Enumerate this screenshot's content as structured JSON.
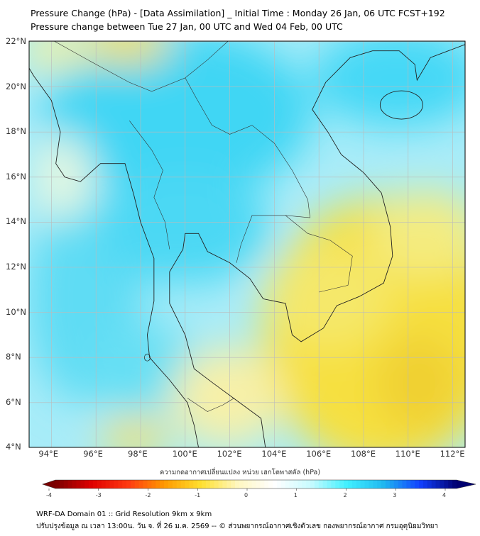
{
  "title": {
    "line1": "Pressure Change (hPa) - [Data Assimilation] _ Initial Time : Monday 26 Jan, 06 UTC FCST+192",
    "line2": "Pressure change between Tue 27 Jan, 00 UTC and Wed 04 Feb, 00 UTC"
  },
  "map": {
    "lon_labels": [
      "94°E",
      "96°E",
      "98°E",
      "100°E",
      "102°E",
      "104°E",
      "106°E",
      "108°E",
      "110°E",
      "112°E"
    ],
    "lat_labels": [
      "22°N",
      "20°N",
      "18°N",
      "16°N",
      "14°N",
      "12°N",
      "10°N",
      "8°N",
      "6°N",
      "4°N"
    ]
  },
  "colorbar": {
    "title": "ความกดอากาศเปลี่ยนแปลง หน่วย เฮกโตพาสคัล (hPa)",
    "ticks": [
      "-4",
      "-3",
      "-2",
      "-1",
      "0",
      "1",
      "2",
      "3",
      "4"
    ],
    "colors": [
      "#7a0000",
      "#e00000",
      "#ff3a10",
      "#ff9a00",
      "#ffe030",
      "#fff7c0",
      "#ffffff",
      "#c8fbff",
      "#40f0ff",
      "#20b8f0",
      "#1040ff",
      "#000070"
    ]
  },
  "footer": {
    "line1": "WRF-DA Domain 01 :: Grid Resolution 9km x 9km",
    "line2": "ปรับปรุงข้อมูล ณ เวลา 13:00น. วัน จ. ที่ 26 ม.ค. 2569 -- © ส่วนพยากรณ์อากาศเชิงตัวเลข กองพยากรณ์อากาศ กรมอุตุนิยมวิทยา"
  }
}
